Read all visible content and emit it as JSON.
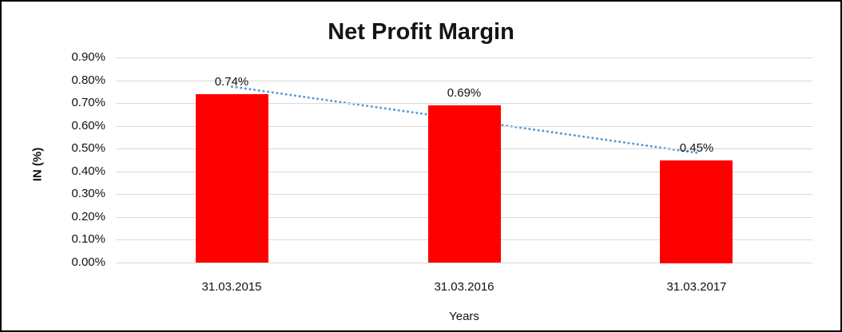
{
  "window": {
    "background": "#FFFFFF",
    "frame_border_color": "#000000"
  },
  "chart_data": {
    "type": "bar",
    "title": "Net Profit Margin",
    "xlabel": "Years",
    "ylabel": "IN (%)",
    "categories": [
      "31.03.2015",
      "31.03.2016",
      "31.03.2017"
    ],
    "values": [
      0.74,
      0.69,
      0.45
    ],
    "data_labels": [
      "0.74%",
      "0.69%",
      "0.45%"
    ],
    "ylim": [
      0,
      0.9
    ],
    "ytick_step": 0.1,
    "ytick_labels": [
      "0.90%",
      "0.80%",
      "0.70%",
      "0.60%",
      "0.50%",
      "0.40%",
      "0.30%",
      "0.20%",
      "0.10%",
      "0.00%"
    ],
    "grid": "horizontal",
    "gridline_color": "#D9D9D9",
    "legend": "none",
    "bar_color": "#FF0000",
    "trendline": {
      "type": "linear",
      "style": "dotted",
      "color": "#5B9BD5",
      "start_value": 0.772,
      "end_value": 0.482
    }
  }
}
